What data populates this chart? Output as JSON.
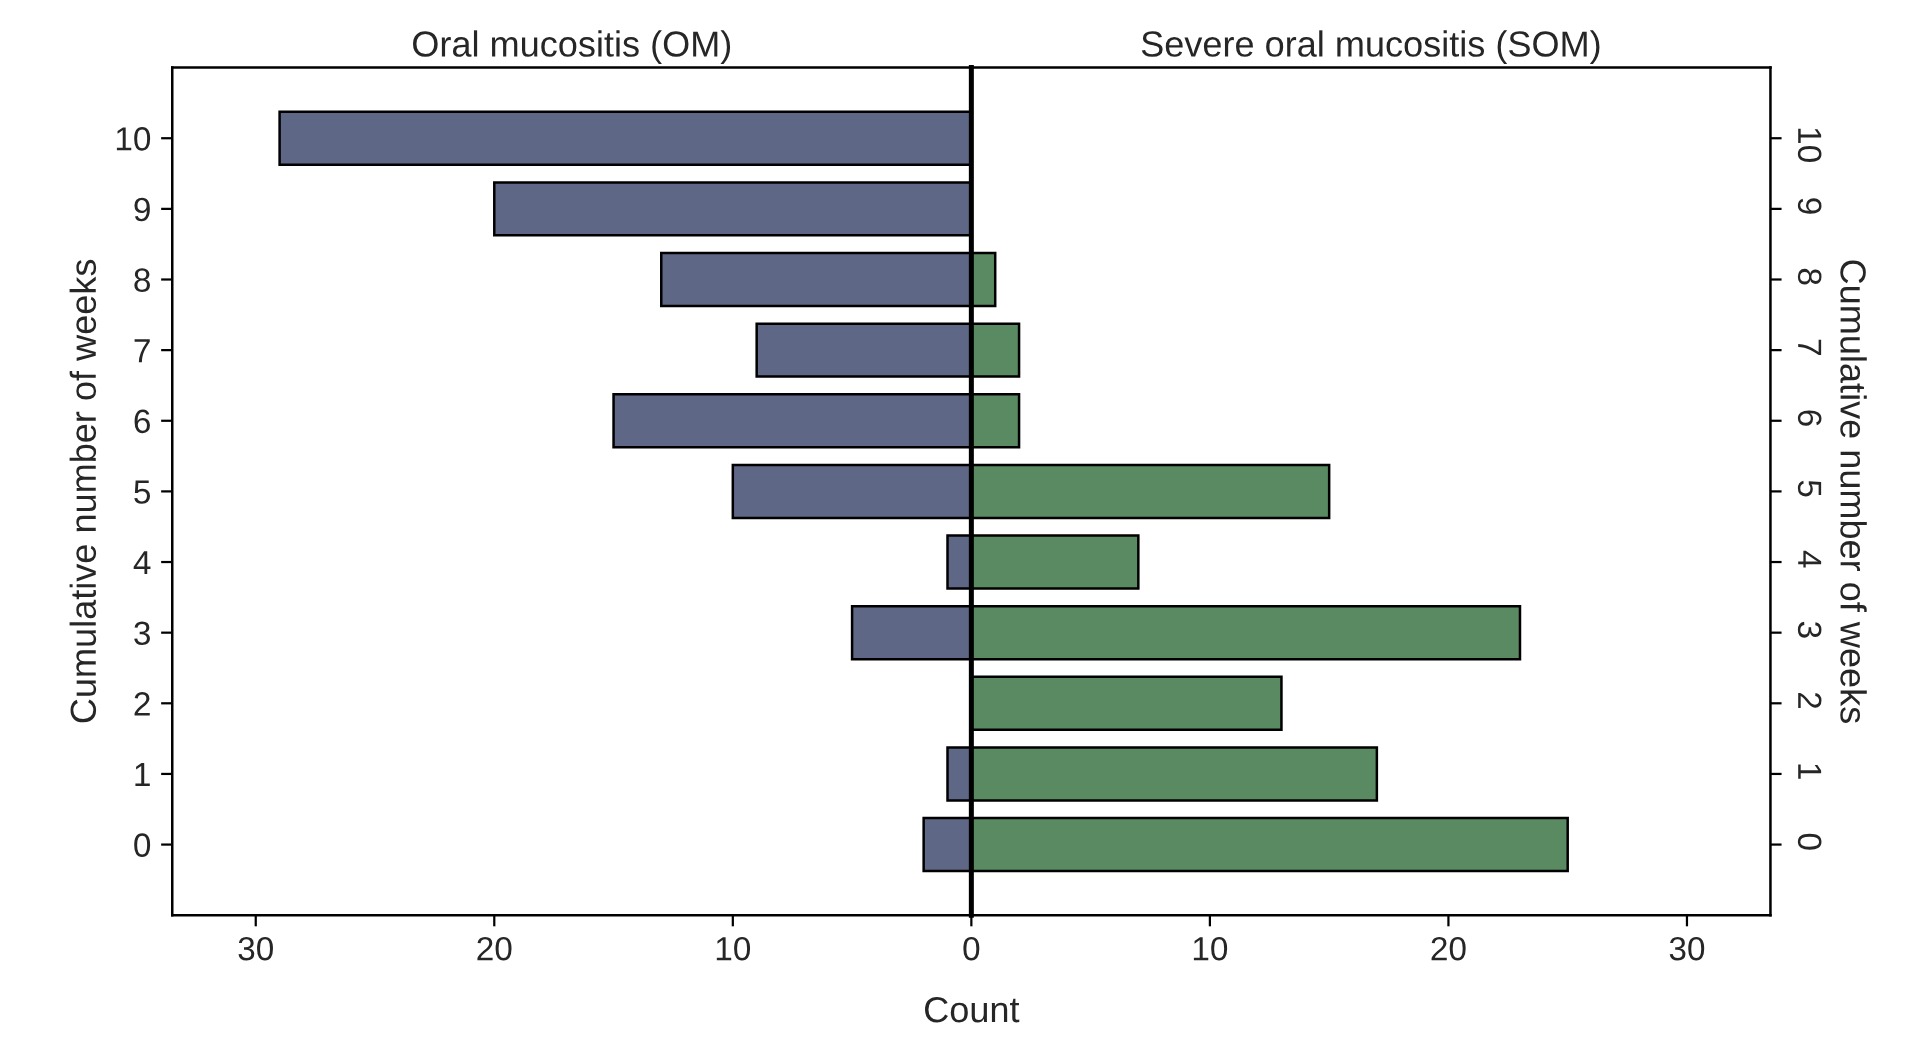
{
  "chart_data": [
    {
      "type": "bar",
      "orientation": "horizontal",
      "title": "Oral mucositis (OM)",
      "xlabel": "Count",
      "ylabel": "Cumulative number of weeks",
      "categories": [
        "10",
        "9",
        "8",
        "7",
        "6",
        "5",
        "4",
        "3",
        "2",
        "1",
        "0"
      ],
      "series": [
        {
          "color": "#5f6787",
          "values": [
            29,
            20,
            13,
            9,
            15,
            10,
            1,
            5,
            null,
            1,
            2
          ]
        }
      ],
      "xlim": [
        33.5,
        0
      ],
      "xticks": [
        30,
        20,
        10
      ],
      "grid": false,
      "legend": false
    },
    {
      "type": "bar",
      "orientation": "horizontal",
      "title": "Severe oral mucositis (SOM)",
      "y2label": "Cumulative number of weeks",
      "categories": [
        "10",
        "9",
        "8",
        "7",
        "6",
        "5",
        "4",
        "3",
        "2",
        "1",
        "0"
      ],
      "series": [
        {
          "color": "#5a8a62",
          "values": [
            null,
            null,
            1,
            2,
            2,
            15,
            7,
            23,
            13,
            17,
            25
          ]
        }
      ],
      "xlim": [
        0,
        33.5
      ],
      "xticks": [
        0,
        10,
        20,
        30
      ],
      "grid": false,
      "legend": false
    }
  ]
}
